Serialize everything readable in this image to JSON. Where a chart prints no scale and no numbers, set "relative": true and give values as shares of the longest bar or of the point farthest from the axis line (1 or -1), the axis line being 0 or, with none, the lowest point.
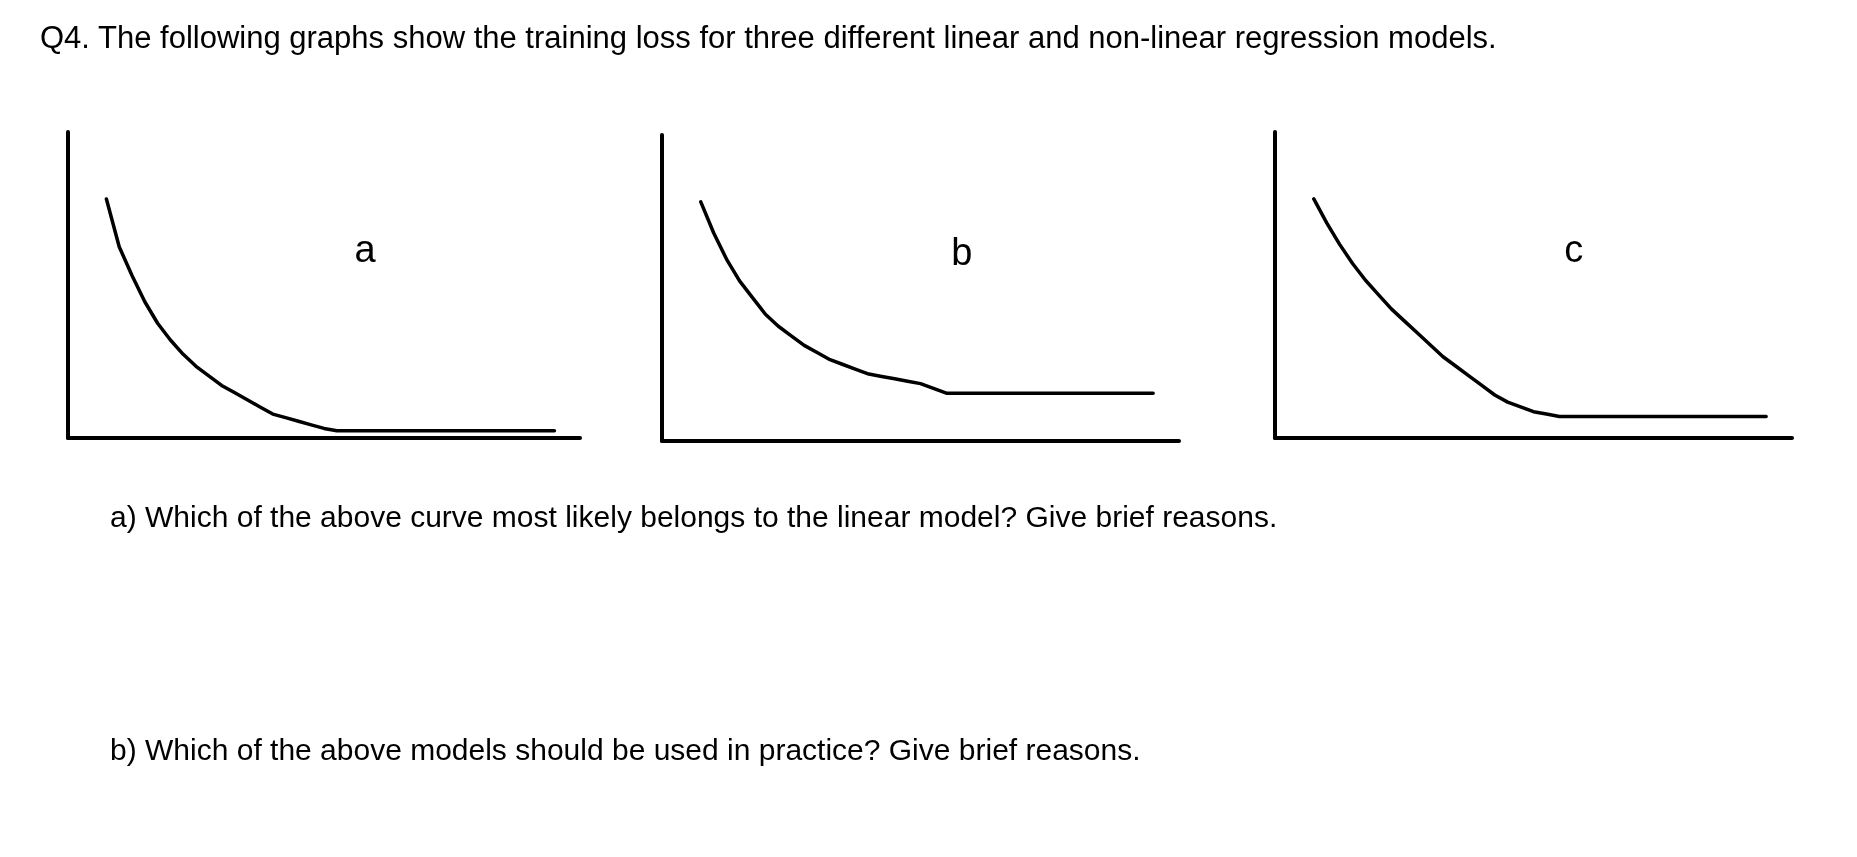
{
  "chart_data": [
    {
      "type": "other",
      "title": "Q4. The following graphs show the training loss for three different linear and non-linear regression models."
    },
    {
      "type": "line",
      "title": "a",
      "relative": true,
      "marker": "none",
      "color": "#000000",
      "categories": [
        null,
        null,
        null,
        null,
        null,
        null,
        null,
        null,
        null,
        null,
        null,
        null,
        null,
        null,
        null,
        null,
        null,
        null,
        null,
        null,
        null,
        null,
        null,
        null,
        null,
        null,
        null,
        null,
        null,
        null,
        null,
        null,
        null,
        null,
        null,
        null,
        null,
        null,
        null,
        null,
        null
      ],
      "values": [
        null,
        null,
        null,
        1.0,
        0.8,
        0.68,
        0.57,
        0.48,
        0.41,
        0.35,
        0.3,
        0.26,
        0.22,
        0.19,
        0.16,
        0.13,
        0.1,
        0.085,
        0.07,
        0.055,
        0.04,
        0.03,
        0.03,
        0.03,
        0.03,
        0.03,
        0.03,
        0.03,
        0.03,
        0.03,
        0.03,
        0.03,
        0.03,
        0.03,
        0.03,
        0.03,
        0.03,
        0.03,
        0.03,
        null,
        null
      ]
    },
    {
      "type": "line",
      "title": "b",
      "relative": true,
      "marker": "none",
      "color": "#000000",
      "categories": [
        null,
        null,
        null,
        null,
        null,
        null,
        null,
        null,
        null,
        null,
        null,
        null,
        null,
        null,
        null,
        null,
        null,
        null,
        null,
        null,
        null,
        null,
        null,
        null,
        null,
        null,
        null,
        null,
        null,
        null,
        null,
        null,
        null,
        null,
        null,
        null,
        null,
        null,
        null,
        null,
        null
      ],
      "values": [
        null,
        null,
        null,
        1.0,
        0.87,
        0.76,
        0.67,
        0.6,
        0.53,
        0.48,
        0.44,
        0.4,
        0.37,
        0.34,
        0.32,
        0.3,
        0.28,
        0.27,
        0.26,
        0.25,
        0.24,
        0.22,
        0.2,
        0.2,
        0.2,
        0.2,
        0.2,
        0.2,
        0.2,
        0.2,
        0.2,
        0.2,
        0.2,
        0.2,
        0.2,
        0.2,
        0.2,
        0.2,
        0.2,
        null,
        null
      ]
    },
    {
      "type": "line",
      "title": "c",
      "relative": true,
      "marker": "none",
      "color": "#000000",
      "categories": [
        null,
        null,
        null,
        null,
        null,
        null,
        null,
        null,
        null,
        null,
        null,
        null,
        null,
        null,
        null,
        null,
        null,
        null,
        null,
        null,
        null,
        null,
        null,
        null,
        null,
        null,
        null,
        null,
        null,
        null,
        null,
        null,
        null,
        null,
        null,
        null,
        null,
        null,
        null,
        null,
        null
      ],
      "values": [
        null,
        null,
        null,
        1.0,
        0.9,
        0.81,
        0.73,
        0.66,
        0.6,
        0.54,
        0.49,
        0.44,
        0.39,
        0.34,
        0.3,
        0.26,
        0.22,
        0.18,
        0.15,
        0.13,
        0.11,
        0.1,
        0.09,
        0.09,
        0.09,
        0.09,
        0.09,
        0.09,
        0.09,
        0.09,
        0.09,
        0.09,
        0.09,
        0.09,
        0.09,
        0.09,
        0.09,
        0.09,
        0.09,
        null,
        null
      ]
    },
    {
      "type": "other",
      "annotations": [
        "a)  Which of the above curve most likely belongs to the linear model? Give brief reasons.",
        "b)  Which of the above models should be used in practice? Give brief reasons."
      ]
    }
  ]
}
